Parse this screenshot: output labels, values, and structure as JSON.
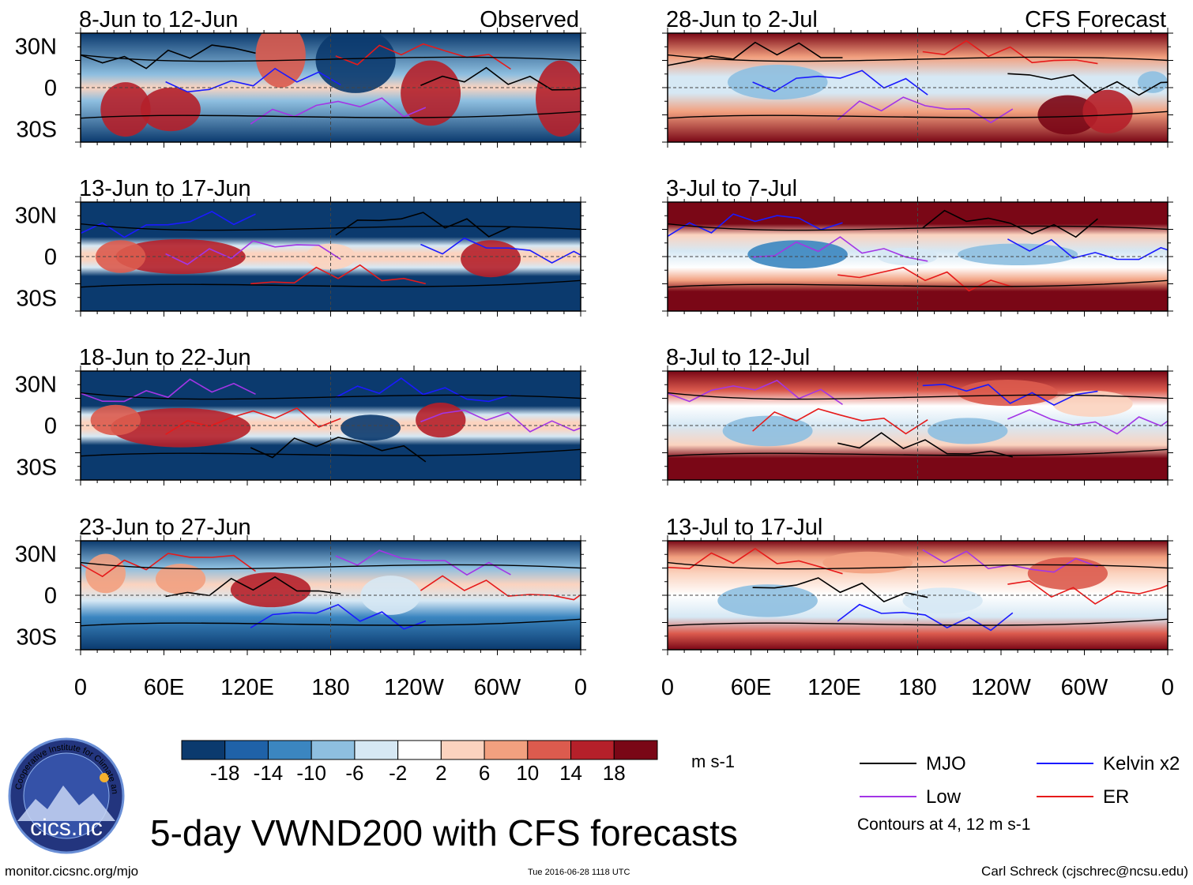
{
  "figure": {
    "title": "5-day VWND200 with CFS forecasts",
    "left_column_label": "Observed",
    "right_column_label": "CFS Forecast",
    "site_url": "monitor.cicsnc.org/mjo",
    "timestamp": "Tue 2016-06-28 1118 UTC",
    "author": "Carl Schreck (cjschrec@ncsu.edu)",
    "logo_text": "cics.nc",
    "logo_ring_text": "Cooperative Institute for Climate and Satellites"
  },
  "panels": {
    "observed": [
      {
        "label": "8-Jun to 12-Jun"
      },
      {
        "label": "13-Jun to 17-Jun"
      },
      {
        "label": "18-Jun to 22-Jun"
      },
      {
        "label": "23-Jun to 27-Jun"
      }
    ],
    "forecast": [
      {
        "label": "28-Jun to 2-Jul"
      },
      {
        "label": "3-Jul to 7-Jul"
      },
      {
        "label": "8-Jul to 12-Jul"
      },
      {
        "label": "13-Jul to 17-Jul"
      }
    ]
  },
  "axes": {
    "lat_ticks": [
      "30N",
      "0",
      "30S"
    ],
    "lon_ticks": [
      "0",
      "60E",
      "120E",
      "180",
      "120W",
      "60W",
      "0"
    ]
  },
  "colorbar": {
    "units": "m s-1",
    "tick_labels": [
      "-18",
      "-14",
      "-10",
      "-6",
      "-2",
      "2",
      "6",
      "10",
      "14",
      "18"
    ],
    "colors": [
      "#0b3a6e",
      "#1f62a8",
      "#3b86c0",
      "#8ebfe0",
      "#d6e8f4",
      "#ffffff",
      "#fbd3bf",
      "#f2a07f",
      "#dc5b4e",
      "#b5202a",
      "#7a0716"
    ]
  },
  "legend": {
    "note": "Contours at 4, 12 m s-1",
    "items": [
      {
        "label": "MJO",
        "color": "#000000"
      },
      {
        "label": "Kelvin x2",
        "color": "#1a1aff"
      },
      {
        "label": "Low",
        "color": "#a335e6"
      },
      {
        "label": "ER",
        "color": "#e61a1a"
      }
    ]
  }
}
